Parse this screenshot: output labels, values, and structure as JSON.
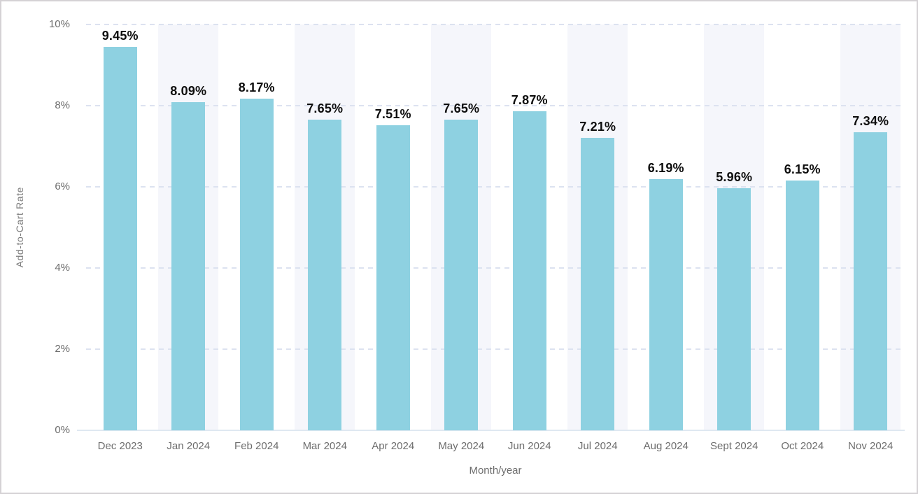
{
  "chart_data": {
    "type": "bar",
    "title": "",
    "xlabel": "Month/year",
    "ylabel": "Add-to-Cart Rate",
    "categories": [
      "Dec 2023",
      "Jan 2024",
      "Feb 2024",
      "Mar 2024",
      "Apr 2024",
      "May 2024",
      "Jun 2024",
      "Jul 2024",
      "Aug 2024",
      "Sept 2024",
      "Oct 2024",
      "Nov 2024"
    ],
    "values": [
      9.45,
      8.09,
      8.17,
      7.65,
      7.51,
      7.65,
      7.87,
      7.21,
      6.19,
      5.96,
      6.15,
      7.34
    ],
    "value_labels": [
      "9.45%",
      "8.09%",
      "8.17%",
      "7.65%",
      "7.51%",
      "7.65%",
      "7.87%",
      "7.21%",
      "6.19%",
      "5.96%",
      "6.15%",
      "7.34%"
    ],
    "ylim": [
      0,
      10
    ],
    "yticks": [
      {
        "value": 0,
        "label": "0%"
      },
      {
        "value": 2,
        "label": "2%"
      },
      {
        "value": 4,
        "label": "4%"
      },
      {
        "value": 6,
        "label": "6%"
      },
      {
        "value": 8,
        "label": "8%"
      },
      {
        "value": 10,
        "label": "10%"
      }
    ],
    "grid": "dashed-horizontal",
    "legend": "none",
    "band_pattern": "alternating columns shaded starting with Jan 2024",
    "colors": {
      "bar": "#8ed1e1",
      "band": "#f5f6fb",
      "gridline": "#dce2f0",
      "baseline": "#dfe8f1",
      "tick_text": "#6d6d6d",
      "axis_title_text": "#7b7b7b",
      "value_text": "#0e0e0e",
      "background": "#ffffff",
      "frame_border": "#d5d2d5"
    }
  }
}
